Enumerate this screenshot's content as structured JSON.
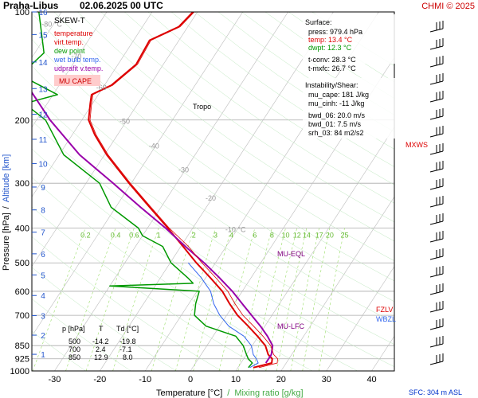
{
  "header": {
    "title": "Praha-Libus",
    "datetime": "02.06.2025 00 UTC",
    "credit": "CHMI © 2025"
  },
  "legend": {
    "skewt": "SKEW-T",
    "items": [
      {
        "label": "temperature",
        "color": "#dd0000"
      },
      {
        "label": "virt.temp.",
        "color": "#dd0000"
      },
      {
        "label": "dew point",
        "color": "#009900"
      },
      {
        "label": "wet bulb temp.",
        "color": "#3366ee"
      },
      {
        "label": "udprafit v.temp.",
        "color": "#9900aa"
      }
    ],
    "cape_badge": "MU CAPE"
  },
  "surface": {
    "title": "Surface:",
    "press": "press: 979.4 hPa",
    "temp": "temp: 13.4 °C",
    "dwpt": "dwpt: 12.3 °C",
    "tconv": "t-conv: 28.3 °C",
    "tmxfc": "t-mxfc: 26.7 °C"
  },
  "instability": {
    "title": "Instability/Shear:",
    "lines": [
      "mu_cape: 181 J/kg",
      "mu_cinh: -11 J/kg",
      "bwd_06: 20.0 m/s",
      "bwd_01: 7.5 m/s",
      "srh_03: 84 m2/s2"
    ]
  },
  "table": {
    "header": [
      "p [hPa]",
      "T",
      "Td [°C]"
    ],
    "rows": [
      [
        "500",
        "-14.2",
        "-19.8"
      ],
      [
        "700",
        "2.4",
        "-7.1"
      ],
      [
        "850",
        "12.9",
        "8.0"
      ]
    ]
  },
  "labels": {
    "tropo": "Tropo",
    "mu_eql": "MU-EQL",
    "mu_lfc": "MU-LFC",
    "fzlv": "FZLV",
    "wbzl": "WBZL",
    "mxws": "MXWS",
    "sfc": "SFC: 304 m ASL"
  },
  "axes": {
    "ylabel_left": "Pressure [hPa]",
    "ylabel_slash": "/",
    "ylabel_right": "Altitude [km]",
    "xlabel_left": "Temperature [°C]",
    "xlabel_slash": "/",
    "xlabel_right": "Mixing ratio [g/kg]"
  },
  "colors": {
    "temp": "#dd0000",
    "dew": "#009900",
    "wetbulb": "#3366ee",
    "parcel": "#9900aa",
    "isotherm": "#bbbbbb",
    "mixratio": "#99dd66",
    "grid": "#999999"
  },
  "chart_data": {
    "type": "line",
    "xlim": [
      -35,
      45
    ],
    "pressure_ticks": [
      100,
      200,
      300,
      400,
      500,
      600,
      700,
      850,
      925,
      1000
    ],
    "temp_ticks": [
      -30,
      -20,
      -10,
      0,
      10,
      20,
      30,
      40
    ],
    "isotherm_labels": [
      "-80 °C",
      "-70",
      "-60",
      "-50",
      "-40",
      "-30",
      "-20",
      "-10 °C"
    ],
    "altitude_ticks": [
      "16",
      "15",
      "14",
      "13",
      "12",
      "11",
      "10",
      "9",
      "8",
      "7",
      "6",
      "5",
      "4",
      "3",
      "2",
      "1"
    ],
    "mixratio_labels": [
      "0.2",
      "0.4",
      "0.6",
      "1",
      "2",
      "3",
      "4",
      "6",
      "8",
      "10",
      "12",
      "14",
      "17",
      "20",
      "25"
    ],
    "series": [
      {
        "name": "temperature",
        "points": [
          [
            979,
            13.4
          ],
          [
            950,
            16.8
          ],
          [
            925,
            16.3
          ],
          [
            900,
            14.8
          ],
          [
            850,
            12.9
          ],
          [
            800,
            9.8
          ],
          [
            750,
            6.3
          ],
          [
            700,
            2.4
          ],
          [
            650,
            -1.0
          ],
          [
            600,
            -4.4
          ],
          [
            550,
            -9.0
          ],
          [
            500,
            -14.2
          ],
          [
            450,
            -19.5
          ],
          [
            400,
            -25.5
          ],
          [
            350,
            -32.5
          ],
          [
            300,
            -40.5
          ],
          [
            250,
            -49.5
          ],
          [
            220,
            -55.0
          ],
          [
            200,
            -58.5
          ],
          [
            180,
            -60.5
          ],
          [
            170,
            -61.5
          ],
          [
            160,
            -58.5
          ],
          [
            140,
            -56.0
          ],
          [
            120,
            -56.5
          ],
          [
            110,
            -52.0
          ],
          [
            100,
            -51.0
          ]
        ]
      },
      {
        "name": "dew point",
        "points": [
          [
            979,
            12.3
          ],
          [
            950,
            12.5
          ],
          [
            925,
            11.0
          ],
          [
            900,
            10.0
          ],
          [
            850,
            8.0
          ],
          [
            800,
            5.0
          ],
          [
            750,
            -3.0
          ],
          [
            700,
            -7.1
          ],
          [
            650,
            -8.5
          ],
          [
            600,
            -9.5
          ],
          [
            580,
            -30.0
          ],
          [
            570,
            -12.0
          ],
          [
            550,
            -14.0
          ],
          [
            500,
            -19.8
          ],
          [
            450,
            -24.0
          ],
          [
            420,
            -30.0
          ],
          [
            400,
            -32.0
          ],
          [
            350,
            -41.0
          ],
          [
            300,
            -47.0
          ],
          [
            250,
            -59.0
          ],
          [
            200,
            -68.0
          ],
          [
            180,
            -75.0
          ],
          [
            170,
            -69.0
          ],
          [
            150,
            -80.0
          ],
          [
            130,
            -78.0
          ],
          [
            100,
            -85.0
          ]
        ]
      },
      {
        "name": "wet bulb temp.",
        "points": [
          [
            979,
            12.6
          ],
          [
            950,
            13.8
          ],
          [
            925,
            12.8
          ],
          [
            900,
            11.5
          ],
          [
            850,
            9.8
          ],
          [
            800,
            6.8
          ],
          [
            750,
            2.0
          ],
          [
            700,
            -1.5
          ],
          [
            650,
            -4.5
          ],
          [
            600,
            -7.0
          ],
          [
            550,
            -11.0
          ],
          [
            500,
            -16.0
          ]
        ]
      },
      {
        "name": "udprafit v.temp.",
        "points": [
          [
            950,
            15.5
          ],
          [
            900,
            15.5
          ],
          [
            850,
            14.5
          ],
          [
            800,
            12.0
          ],
          [
            750,
            9.0
          ],
          [
            700,
            5.5
          ],
          [
            650,
            1.8
          ],
          [
            600,
            -2.2
          ],
          [
            550,
            -7.0
          ],
          [
            500,
            -12.5
          ],
          [
            450,
            -19.0
          ],
          [
            400,
            -26.0
          ],
          [
            350,
            -34.5
          ],
          [
            300,
            -44.0
          ],
          [
            250,
            -55.5
          ],
          [
            200,
            -67.0
          ],
          [
            150,
            -80.0
          ],
          [
            100,
            -97.0
          ]
        ]
      }
    ]
  }
}
